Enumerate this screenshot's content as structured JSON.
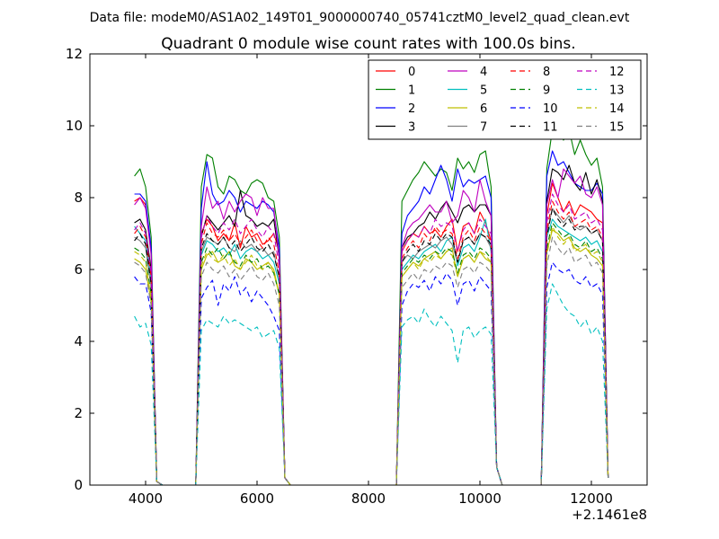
{
  "chart_data": {
    "type": "line",
    "suptitle": "Data file: modeM0/AS1A02_149T01_9000000740_05741cztM0_level2_quad_clean.evt",
    "title": "Quadrant 0 module wise count rates with 100.0s bins.",
    "xlabel": "",
    "ylabel": "",
    "x_offset_label": "+2.1461e8",
    "xlim": [
      3000,
      13000
    ],
    "ylim": [
      0,
      12
    ],
    "xticks": [
      4000,
      6000,
      8000,
      10000,
      12000
    ],
    "yticks": [
      0,
      2,
      4,
      6,
      8,
      10,
      12
    ],
    "xtick_labels": [
      "4000",
      "6000",
      "8000",
      "10000",
      "12000"
    ],
    "ytick_labels": [
      "0",
      "2",
      "4",
      "6",
      "8",
      "10",
      "12"
    ],
    "legend": {
      "placement": "top-right",
      "columns": 4,
      "entries": [
        {
          "label": "0",
          "color": "#ff0000",
          "style": "solid"
        },
        {
          "label": "1",
          "color": "#008000",
          "style": "solid"
        },
        {
          "label": "2",
          "color": "#0000ff",
          "style": "solid"
        },
        {
          "label": "3",
          "color": "#000000",
          "style": "solid"
        },
        {
          "label": "4",
          "color": "#bf00bf",
          "style": "solid"
        },
        {
          "label": "5",
          "color": "#00bfbf",
          "style": "solid"
        },
        {
          "label": "6",
          "color": "#bfbf00",
          "style": "solid"
        },
        {
          "label": "7",
          "color": "#808080",
          "style": "solid"
        },
        {
          "label": "8",
          "color": "#ff0000",
          "style": "dashed"
        },
        {
          "label": "9",
          "color": "#008000",
          "style": "dashed"
        },
        {
          "label": "10",
          "color": "#0000ff",
          "style": "dashed"
        },
        {
          "label": "11",
          "color": "#000000",
          "style": "dashed"
        },
        {
          "label": "12",
          "color": "#bf00bf",
          "style": "dashed"
        },
        {
          "label": "13",
          "color": "#00bfbf",
          "style": "dashed"
        },
        {
          "label": "14",
          "color": "#bfbf00",
          "style": "dashed"
        },
        {
          "label": "15",
          "color": "#808080",
          "style": "dashed"
        }
      ]
    },
    "x": [
      3800,
      3900,
      4000,
      4100,
      4200,
      4300,
      4900,
      5000,
      5100,
      5200,
      5300,
      5400,
      5500,
      5600,
      5700,
      5800,
      5900,
      6000,
      6100,
      6200,
      6300,
      6400,
      6500,
      6600,
      8500,
      8600,
      8700,
      8800,
      8900,
      9000,
      9100,
      9200,
      9300,
      9400,
      9500,
      9600,
      9700,
      9800,
      9900,
      10000,
      10100,
      10200,
      10300,
      10400,
      10500,
      11100,
      11200,
      11300,
      11400,
      11500,
      11600,
      11700,
      11800,
      11900,
      12000,
      12100,
      12200,
      12300
    ],
    "series": [
      {
        "name": "0",
        "values": [
          7.9,
          8.0,
          7.8,
          6.5,
          0.1,
          0.0,
          0.0,
          7.0,
          7.4,
          7.2,
          6.8,
          7.0,
          6.8,
          7.3,
          6.6,
          7.2,
          6.9,
          7.0,
          6.7,
          6.8,
          7.0,
          6.5,
          0.2,
          0.0,
          0.0,
          6.5,
          6.8,
          7.0,
          6.9,
          7.2,
          7.0,
          7.1,
          6.9,
          7.2,
          7.4,
          6.5,
          7.2,
          7.3,
          7.0,
          7.6,
          7.3,
          6.8,
          0.5,
          0.0,
          0.0,
          0.0,
          7.5,
          8.4,
          8.0,
          7.6,
          7.9,
          7.5,
          7.8,
          7.7,
          7.6,
          7.4,
          7.3,
          0.2
        ]
      },
      {
        "name": "1",
        "values": [
          8.6,
          8.8,
          8.3,
          6.9,
          0.1,
          0.0,
          0.0,
          8.3,
          9.2,
          9.1,
          8.3,
          8.1,
          8.6,
          8.5,
          8.2,
          8.1,
          8.4,
          8.5,
          8.4,
          8.0,
          7.9,
          6.9,
          0.2,
          0.0,
          0.0,
          7.9,
          8.2,
          8.5,
          8.7,
          9.0,
          8.8,
          8.6,
          8.8,
          8.7,
          8.2,
          9.1,
          8.8,
          9.0,
          8.7,
          9.2,
          9.3,
          8.3,
          0.5,
          0.0,
          0.0,
          0.0,
          8.8,
          9.9,
          10.0,
          9.6,
          9.9,
          9.2,
          9.6,
          9.2,
          8.9,
          9.1,
          8.3,
          0.2
        ]
      },
      {
        "name": "2",
        "values": [
          8.1,
          8.1,
          7.9,
          6.6,
          0.1,
          0.0,
          0.0,
          7.7,
          9.0,
          8.1,
          7.8,
          7.9,
          8.2,
          8.0,
          7.6,
          7.9,
          7.8,
          7.7,
          7.9,
          7.8,
          7.6,
          6.6,
          0.2,
          0.0,
          0.0,
          7.0,
          7.5,
          7.7,
          7.9,
          8.3,
          8.1,
          8.5,
          8.9,
          8.5,
          7.9,
          8.8,
          8.3,
          8.5,
          8.4,
          8.5,
          8.6,
          8.0,
          0.5,
          0.0,
          0.0,
          0.0,
          8.6,
          9.3,
          8.9,
          9.0,
          8.7,
          8.4,
          8.3,
          8.2,
          8.2,
          8.4,
          8.1,
          0.2
        ]
      },
      {
        "name": "3",
        "values": [
          7.3,
          7.4,
          7.1,
          6.0,
          0.1,
          0.0,
          0.0,
          6.9,
          7.5,
          7.3,
          7.1,
          7.3,
          7.5,
          7.2,
          8.2,
          7.5,
          7.4,
          7.2,
          7.3,
          7.2,
          7.4,
          6.3,
          0.2,
          0.0,
          0.0,
          6.6,
          6.9,
          7.0,
          7.2,
          7.3,
          7.6,
          7.4,
          7.7,
          7.9,
          7.6,
          7.3,
          7.7,
          7.8,
          7.6,
          7.8,
          7.8,
          7.5,
          0.5,
          0.0,
          0.0,
          0.0,
          7.9,
          8.8,
          8.7,
          8.5,
          8.9,
          8.4,
          8.2,
          8.7,
          8.1,
          8.5,
          7.9,
          0.2
        ]
      },
      {
        "name": "4",
        "values": [
          7.8,
          8.0,
          7.7,
          6.4,
          0.1,
          0.0,
          0.0,
          7.2,
          8.3,
          7.7,
          7.9,
          7.4,
          7.9,
          7.6,
          7.9,
          8.1,
          8.0,
          7.5,
          8.0,
          7.7,
          7.7,
          6.3,
          0.2,
          0.0,
          0.0,
          6.6,
          7.1,
          7.3,
          7.4,
          7.6,
          7.8,
          7.6,
          7.6,
          7.9,
          7.3,
          7.5,
          8.2,
          8.0,
          7.6,
          8.5,
          7.9,
          7.5,
          0.5,
          0.0,
          0.0,
          0.0,
          7.8,
          8.5,
          8.0,
          8.8,
          8.6,
          8.4,
          8.6,
          8.1,
          8.0,
          8.3,
          7.8,
          0.2
        ]
      },
      {
        "name": "5",
        "values": [
          7.2,
          7.0,
          6.8,
          5.7,
          0.1,
          0.0,
          0.0,
          6.4,
          6.8,
          6.7,
          6.5,
          6.6,
          6.4,
          6.7,
          6.3,
          6.5,
          6.6,
          6.5,
          6.3,
          6.4,
          6.2,
          5.6,
          0.2,
          0.0,
          0.0,
          6.0,
          6.2,
          6.4,
          6.3,
          6.5,
          6.6,
          6.7,
          6.5,
          6.8,
          6.9,
          6.1,
          6.6,
          6.7,
          6.5,
          6.9,
          7.4,
          6.5,
          0.5,
          0.0,
          0.0,
          0.0,
          6.9,
          7.4,
          7.2,
          7.1,
          7.0,
          6.9,
          6.8,
          6.9,
          6.7,
          6.8,
          6.5,
          0.2
        ]
      },
      {
        "name": "6",
        "values": [
          6.3,
          6.2,
          6.0,
          5.1,
          0.1,
          0.0,
          0.0,
          6.0,
          6.4,
          6.5,
          6.2,
          6.3,
          6.5,
          6.1,
          6.0,
          6.3,
          6.2,
          6.0,
          6.1,
          6.2,
          6.0,
          5.3,
          0.2,
          0.0,
          0.0,
          5.8,
          6.0,
          6.2,
          6.1,
          6.3,
          6.4,
          6.5,
          6.3,
          6.5,
          6.6,
          5.8,
          6.3,
          6.4,
          6.2,
          6.5,
          6.3,
          6.2,
          0.5,
          0.0,
          0.0,
          0.0,
          6.5,
          7.1,
          7.0,
          6.8,
          6.9,
          6.6,
          6.5,
          6.6,
          6.4,
          6.3,
          6.1,
          0.2
        ]
      },
      {
        "name": "7",
        "values": [
          6.9,
          6.8,
          6.6,
          5.5,
          0.1,
          0.0,
          0.0,
          6.5,
          6.9,
          6.8,
          6.7,
          6.9,
          6.6,
          6.5,
          6.8,
          6.6,
          6.7,
          6.5,
          6.6,
          6.4,
          6.5,
          5.7,
          0.2,
          0.0,
          0.0,
          6.2,
          6.4,
          6.3,
          6.5,
          6.6,
          6.7,
          6.6,
          6.8,
          6.9,
          6.7,
          6.2,
          6.8,
          6.9,
          6.7,
          7.0,
          6.9,
          6.6,
          0.5,
          0.0,
          0.0,
          0.0,
          7.0,
          7.7,
          7.5,
          7.3,
          7.5,
          7.2,
          7.1,
          7.2,
          7.0,
          7.1,
          6.8,
          0.2
        ]
      },
      {
        "name": "8",
        "values": [
          7.0,
          7.2,
          6.9,
          5.8,
          0.1,
          0.0,
          0.0,
          6.7,
          7.3,
          7.0,
          6.9,
          7.1,
          6.8,
          7.0,
          6.7,
          6.9,
          7.1,
          6.8,
          6.6,
          6.9,
          6.7,
          5.9,
          0.2,
          0.0,
          0.0,
          6.3,
          6.6,
          6.8,
          6.6,
          7.0,
          6.8,
          7.2,
          7.0,
          7.1,
          7.0,
          6.3,
          6.9,
          7.1,
          6.8,
          7.2,
          7.0,
          6.8,
          0.5,
          0.0,
          0.0,
          0.0,
          7.1,
          7.9,
          7.6,
          7.4,
          7.6,
          7.2,
          7.3,
          7.4,
          7.1,
          7.2,
          6.9,
          0.2
        ]
      },
      {
        "name": "9",
        "values": [
          6.6,
          6.5,
          6.3,
          5.3,
          0.1,
          0.0,
          0.0,
          6.2,
          6.6,
          6.4,
          6.6,
          6.3,
          6.5,
          6.2,
          6.1,
          6.4,
          6.2,
          6.3,
          6.0,
          6.1,
          5.9,
          5.3,
          0.2,
          0.0,
          0.0,
          5.9,
          6.1,
          6.3,
          6.2,
          6.4,
          6.3,
          6.5,
          6.4,
          6.6,
          6.5,
          5.9,
          6.4,
          6.5,
          6.3,
          6.6,
          6.5,
          6.3,
          0.5,
          0.0,
          0.0,
          0.0,
          6.6,
          7.3,
          7.1,
          6.9,
          7.0,
          6.7,
          6.6,
          6.8,
          6.5,
          6.6,
          6.3,
          0.2
        ]
      },
      {
        "name": "10",
        "values": [
          5.8,
          5.6,
          5.6,
          4.8,
          0.1,
          0.0,
          0.0,
          5.2,
          5.5,
          5.7,
          5.0,
          5.6,
          5.4,
          5.8,
          5.3,
          5.5,
          5.1,
          5.4,
          5.2,
          5.0,
          4.7,
          4.3,
          0.2,
          0.0,
          0.0,
          5.0,
          5.4,
          5.6,
          5.5,
          5.7,
          5.4,
          5.8,
          5.6,
          5.9,
          5.7,
          5.0,
          5.6,
          5.7,
          5.4,
          5.8,
          5.6,
          5.4,
          0.5,
          0.0,
          0.0,
          0.0,
          5.5,
          6.2,
          6.0,
          5.9,
          6.0,
          5.7,
          5.6,
          5.8,
          5.5,
          5.6,
          5.3,
          0.2
        ]
      },
      {
        "name": "11",
        "values": [
          6.8,
          7.0,
          6.7,
          5.6,
          0.1,
          0.0,
          0.0,
          6.6,
          7.0,
          6.8,
          6.7,
          6.9,
          6.6,
          6.8,
          6.5,
          6.7,
          6.9,
          6.6,
          6.5,
          6.7,
          6.4,
          5.8,
          0.2,
          0.0,
          0.0,
          6.2,
          6.5,
          6.7,
          6.5,
          6.8,
          6.7,
          7.0,
          6.8,
          7.0,
          6.9,
          6.2,
          6.8,
          6.9,
          6.7,
          7.0,
          6.9,
          6.7,
          0.5,
          0.0,
          0.0,
          0.0,
          6.9,
          7.7,
          7.4,
          7.2,
          7.4,
          7.1,
          7.2,
          7.2,
          7.0,
          7.1,
          6.8,
          0.2
        ]
      },
      {
        "name": "12",
        "values": [
          7.1,
          7.3,
          7.0,
          5.9,
          0.1,
          0.0,
          0.0,
          6.9,
          7.5,
          7.2,
          7.0,
          7.3,
          7.1,
          7.4,
          7.0,
          7.2,
          7.4,
          7.1,
          6.9,
          7.2,
          7.0,
          6.1,
          0.2,
          0.0,
          0.0,
          6.5,
          6.8,
          7.0,
          6.9,
          7.2,
          7.0,
          7.4,
          7.2,
          7.3,
          7.2,
          6.5,
          7.1,
          7.3,
          7.0,
          7.4,
          7.2,
          7.0,
          0.5,
          0.0,
          0.0,
          0.0,
          7.3,
          8.1,
          7.8,
          7.6,
          7.8,
          7.4,
          7.5,
          7.6,
          7.3,
          7.4,
          7.1,
          0.2
        ]
      },
      {
        "name": "13",
        "values": [
          4.7,
          4.4,
          4.5,
          3.9,
          0.1,
          0.0,
          0.0,
          4.3,
          4.6,
          4.5,
          4.4,
          4.7,
          4.5,
          4.6,
          4.5,
          4.4,
          4.3,
          4.4,
          4.1,
          4.2,
          4.3,
          3.8,
          0.2,
          0.0,
          0.0,
          4.4,
          4.6,
          4.7,
          4.5,
          4.9,
          4.6,
          4.4,
          4.7,
          4.5,
          4.3,
          3.4,
          4.3,
          4.4,
          4.1,
          4.3,
          4.4,
          4.2,
          0.5,
          0.0,
          0.0,
          0.0,
          4.9,
          5.6,
          5.3,
          5.0,
          4.8,
          4.7,
          4.4,
          4.6,
          4.2,
          4.4,
          4.0,
          0.2
        ]
      },
      {
        "name": "14",
        "values": [
          6.5,
          6.4,
          6.2,
          5.2,
          0.1,
          0.0,
          0.0,
          6.1,
          6.5,
          6.3,
          6.2,
          6.4,
          6.1,
          6.3,
          6.0,
          6.2,
          6.4,
          6.1,
          6.0,
          6.2,
          5.9,
          5.3,
          0.2,
          0.0,
          0.0,
          5.8,
          6.0,
          6.2,
          6.0,
          6.3,
          6.2,
          6.4,
          6.3,
          6.5,
          6.4,
          5.8,
          6.3,
          6.4,
          6.2,
          6.5,
          6.4,
          6.2,
          0.5,
          0.0,
          0.0,
          0.0,
          6.4,
          7.2,
          6.9,
          6.7,
          6.9,
          6.5,
          6.6,
          6.7,
          6.4,
          6.5,
          6.2,
          0.2
        ]
      },
      {
        "name": "15",
        "values": [
          6.2,
          6.1,
          5.9,
          5.0,
          0.1,
          0.0,
          0.0,
          5.8,
          6.2,
          6.0,
          5.9,
          6.1,
          5.8,
          6.0,
          5.7,
          5.9,
          6.1,
          5.8,
          5.7,
          5.9,
          5.6,
          5.0,
          0.2,
          0.0,
          0.0,
          5.5,
          5.7,
          5.9,
          5.7,
          6.0,
          5.9,
          6.1,
          6.0,
          6.2,
          6.1,
          5.5,
          6.0,
          6.1,
          5.9,
          6.2,
          6.1,
          5.9,
          0.5,
          0.0,
          0.0,
          0.0,
          6.1,
          6.9,
          6.6,
          6.4,
          6.6,
          6.2,
          6.3,
          6.4,
          6.1,
          6.2,
          5.9,
          0.2
        ]
      }
    ]
  }
}
